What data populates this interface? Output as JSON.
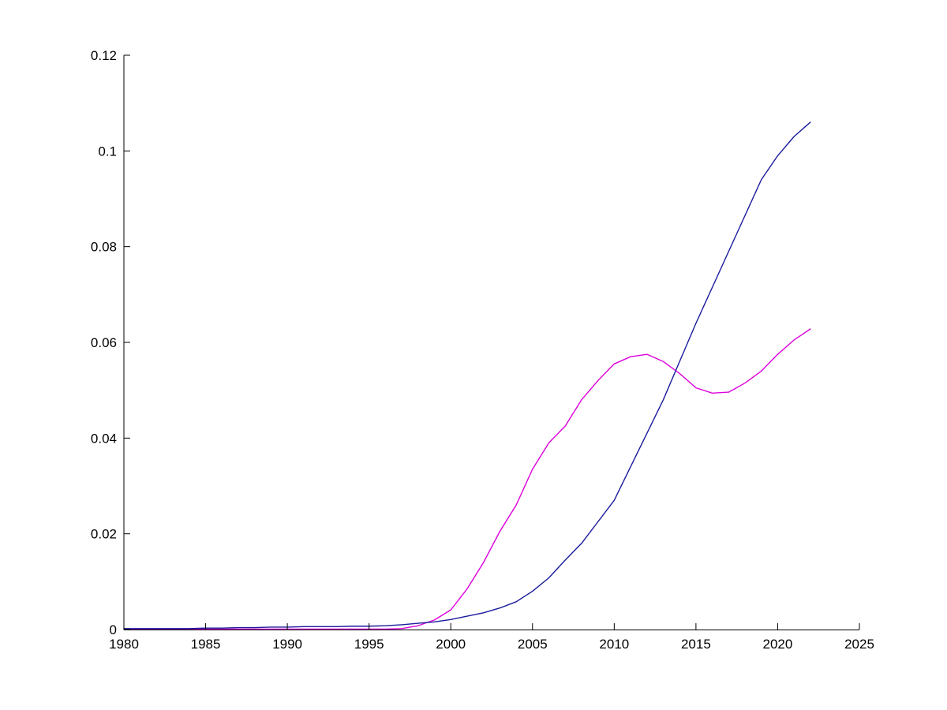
{
  "figure": {
    "background": "#ffffff",
    "title": ""
  },
  "chart_data": {
    "type": "line",
    "title": "",
    "xlabel": "",
    "ylabel": "",
    "grid": false,
    "legend": null,
    "xlim": [
      1980,
      2025
    ],
    "ylim": [
      0,
      0.12
    ],
    "axis_color": "#000000",
    "tick_label_color": "#000000",
    "tick_length": 8,
    "x": [
      1980,
      1981,
      1982,
      1983,
      1984,
      1985,
      1986,
      1987,
      1988,
      1989,
      1990,
      1991,
      1992,
      1993,
      1994,
      1995,
      1996,
      1997,
      1998,
      1999,
      2000,
      2001,
      2002,
      2003,
      2004,
      2005,
      2006,
      2007,
      2008,
      2009,
      2010,
      2011,
      2012,
      2013,
      2014,
      2015,
      2016,
      2017,
      2018,
      2019,
      2020,
      2021,
      2022
    ],
    "series": [
      {
        "name": "magenta-line",
        "color": "#dd00dd",
        "values": [
          0.0001,
          0.0001,
          0.0001,
          0.0001,
          0.0001,
          0.0001,
          0.0001,
          0.0001,
          0.0001,
          0.0001,
          0.0001,
          0.0001,
          0.0001,
          0.0001,
          0.0001,
          0.0001,
          0.0001,
          0.0002,
          0.0008,
          0.002,
          0.0041,
          0.0085,
          0.014,
          0.0205,
          0.026,
          0.0335,
          0.039,
          0.0425,
          0.048,
          0.052,
          0.0555,
          0.057,
          0.0575,
          0.056,
          0.0535,
          0.0505,
          0.0494,
          0.0496,
          0.0515,
          0.054,
          0.0575,
          0.0605,
          0.0628
        ]
      },
      {
        "name": "blue-line",
        "color": "#1a1a9c",
        "values": [
          0.0002,
          0.0002,
          0.0002,
          0.0002,
          0.0002,
          0.0003,
          0.0003,
          0.0004,
          0.0004,
          0.0005,
          0.0005,
          0.0006,
          0.0006,
          0.0006,
          0.0007,
          0.0007,
          0.0008,
          0.001,
          0.0013,
          0.0016,
          0.0021,
          0.0028,
          0.0035,
          0.0045,
          0.0058,
          0.008,
          0.0108,
          0.0145,
          0.018,
          0.0225,
          0.027,
          0.034,
          0.041,
          0.048,
          0.056,
          0.064,
          0.0715,
          0.079,
          0.0865,
          0.094,
          0.099,
          0.103,
          0.106
        ]
      }
    ],
    "xtick_values": [
      1980,
      1985,
      1990,
      1995,
      2000,
      2005,
      2010,
      2015,
      2020,
      2025
    ],
    "xtick_labels": [
      "1980",
      "1985",
      "1990",
      "1995",
      "2000",
      "2005",
      "2010",
      "2015",
      "2020",
      "2025"
    ],
    "ytick_values": [
      0,
      0.02,
      0.04,
      0.06,
      0.08,
      0.1,
      0.12
    ],
    "ytick_labels": [
      "0",
      "0.02",
      "0.04",
      "0.06",
      "0.08",
      "0.1",
      "0.12"
    ]
  }
}
